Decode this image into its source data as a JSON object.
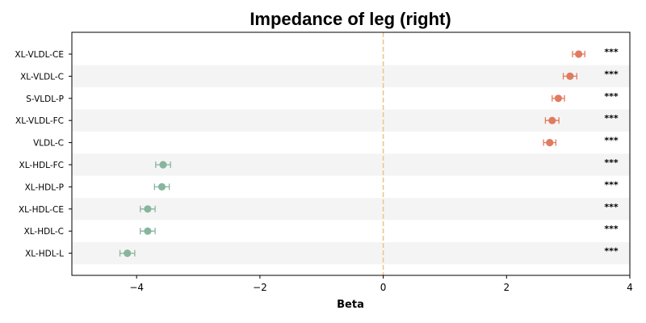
{
  "chart_data": {
    "type": "scatter",
    "title": "Impedance of leg (right)",
    "xlabel": "Beta",
    "ylabel": "",
    "xlim": [
      -5.05,
      4.0
    ],
    "xticks": [
      -4,
      -2,
      0,
      2,
      4
    ],
    "xtick_labels": [
      "−4",
      "−2",
      "0",
      "2",
      "4"
    ],
    "reference_line": 0,
    "categories": [
      "XL-VLDL-CE",
      "XL-VLDL-C",
      "S-VLDL-P",
      "XL-VLDL-FC",
      "VLDL-C",
      "XL-HDL-FC",
      "XL-HDL-P",
      "XL-HDL-CE",
      "XL-HDL-C",
      "XL-HDL-L"
    ],
    "values": [
      3.17,
      3.03,
      2.84,
      2.74,
      2.7,
      -3.57,
      -3.59,
      -3.82,
      -3.82,
      -4.15
    ],
    "ci_low": [
      3.07,
      2.92,
      2.74,
      2.63,
      2.6,
      -3.69,
      -3.71,
      -3.94,
      -3.94,
      -4.27
    ],
    "ci_high": [
      3.27,
      3.14,
      2.94,
      2.85,
      2.8,
      -3.45,
      -3.47,
      -3.7,
      -3.7,
      -4.03
    ],
    "significance": [
      "***",
      "***",
      "***",
      "***",
      "***",
      "***",
      "***",
      "***",
      "***",
      "***"
    ],
    "colors": {
      "positive": "#e07b5f",
      "negative": "#87b59e",
      "reference_line": "#f0c48a",
      "stripe": "#f4f4f4"
    },
    "grid": false,
    "legend": "none"
  }
}
